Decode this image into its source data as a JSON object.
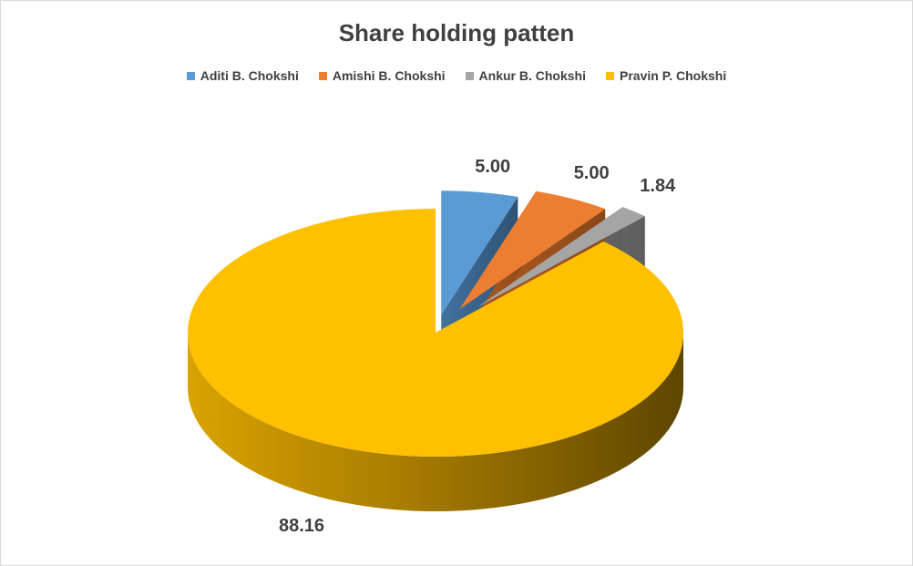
{
  "chart_data": {
    "type": "pie",
    "title": "Share holding patten",
    "categories": [
      "Aditi B. Chokshi",
      "Amishi B. Chokshi",
      "Ankur B. Chokshi",
      "Pravin P. Chokshi"
    ],
    "values": [
      5.0,
      5.0,
      1.84,
      88.16
    ],
    "value_labels": [
      "5.00",
      "5.00",
      "1.84",
      "88.16"
    ],
    "colors": [
      "#5B9BD5",
      "#ED7D31",
      "#A5A5A5",
      "#FFC000"
    ],
    "legend_position": "top",
    "style": "3d-exploded"
  }
}
